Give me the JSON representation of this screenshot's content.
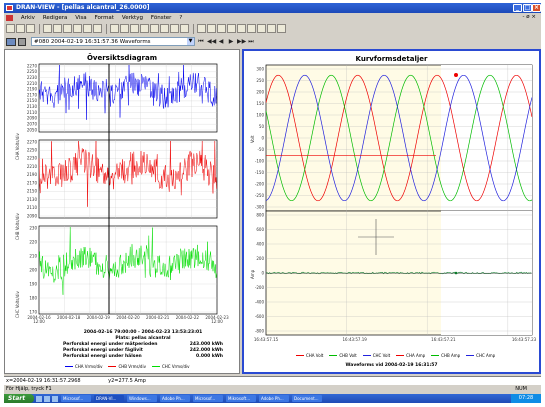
{
  "window": {
    "title": "DRAN-VIEW - [pellas alcantral_26.0000]",
    "controls": [
      "_",
      "□",
      "×"
    ]
  },
  "menubar": {
    "items": [
      "Arkiv",
      "Redigera",
      "Visa",
      "Format",
      "Verktyg",
      "Fönster",
      "?"
    ],
    "right_controls": "- ø ×"
  },
  "navbar": {
    "event_label": "#080  2004-02-19 16:31:57.36  Waveforms",
    "nav_glyphs": [
      "⏮",
      "◀◀",
      "◀",
      "▶",
      "▶▶",
      "⏭"
    ]
  },
  "overview": {
    "title": "Översiktsdiagram",
    "plots": [
      {
        "ylabel": "CHA Volts/div",
        "color": "#0000ee",
        "yticks": [
          "2270",
          "2250",
          "2230",
          "2210",
          "2190",
          "2170",
          "2150",
          "2130",
          "2110",
          "2090",
          "2070",
          "2050"
        ]
      },
      {
        "ylabel": "CHB Volts/div",
        "color": "#ee0000",
        "yticks": [
          "2270",
          "2250",
          "2230",
          "2210",
          "2190",
          "2170",
          "2150",
          "2130",
          "2110",
          "2090"
        ]
      },
      {
        "ylabel": "CHC Volts/div",
        "color": "#00dd00",
        "yticks": [
          "230",
          "220",
          "210",
          "200",
          "190",
          "180",
          "170"
        ]
      }
    ],
    "xticks": [
      "2004-02-16\n12:00",
      "2004-02-18",
      "2004-02-19",
      "2004-02-20",
      "2004-02-21",
      "2004-02-22",
      "2004-02-23\n12:00"
    ],
    "info": {
      "period": "2004-02-16 79:00:00 - 2004-02-23 13:53:23:01",
      "site": "Plats: pellas alcantral",
      "rows": [
        {
          "label": "Perforskal energi under mätperioden",
          "value": "243.000 kWh"
        },
        {
          "label": "Perforskal energi under fäglivit",
          "value": "242.000 kWh"
        },
        {
          "label": "Perforskal energi under hälsen",
          "value": "0.000 kWh"
        }
      ]
    },
    "legend": [
      "CHA Vrms/div",
      "CHB Vrms/div",
      "CHC Vrms/div"
    ]
  },
  "waveform": {
    "title": "Kurvformsdetaljer",
    "upper_yticks": [
      "300",
      "250",
      "200",
      "150",
      "100",
      "50",
      "0",
      "-50",
      "-100",
      "-150",
      "-200",
      "-250",
      "-300"
    ],
    "lower_yticks": [
      "800",
      "600",
      "400",
      "200",
      "0",
      "-200",
      "-400",
      "-600",
      "-800"
    ],
    "upper_ylabel": "Volt",
    "lower_ylabel": "Amp",
    "xticks": [
      "16:43:57.15",
      "16:43:57.19",
      "16:43:57.21",
      "16:43:57.23"
    ],
    "legend": [
      "CHA Volt",
      "CHB Volt",
      "CHC Volt",
      "CHA Amp",
      "CHB Amp",
      "CHC Amp"
    ],
    "legend_colors": [
      "#ee0000",
      "#00bb00",
      "#2222dd",
      "#ee0000",
      "#00bb00",
      "#2222dd"
    ],
    "footer": "Waveforms vid 2004-02-19 16:31:57"
  },
  "status": {
    "coord": "x=2004-02-19 16:31:57.2968",
    "dy": "y2=277.5 Amp",
    "help": "För Hjälp, tryck F1",
    "num": "NUM"
  },
  "taskbar": {
    "start": "Start",
    "tasks": [
      "Microsof...",
      "DRAN-VI...",
      "Windows...",
      "Adobe Ph...",
      "Microsof...",
      "Mikrosoft...",
      "Adobe Ph...",
      "Document..."
    ],
    "clock": "07:28"
  }
}
